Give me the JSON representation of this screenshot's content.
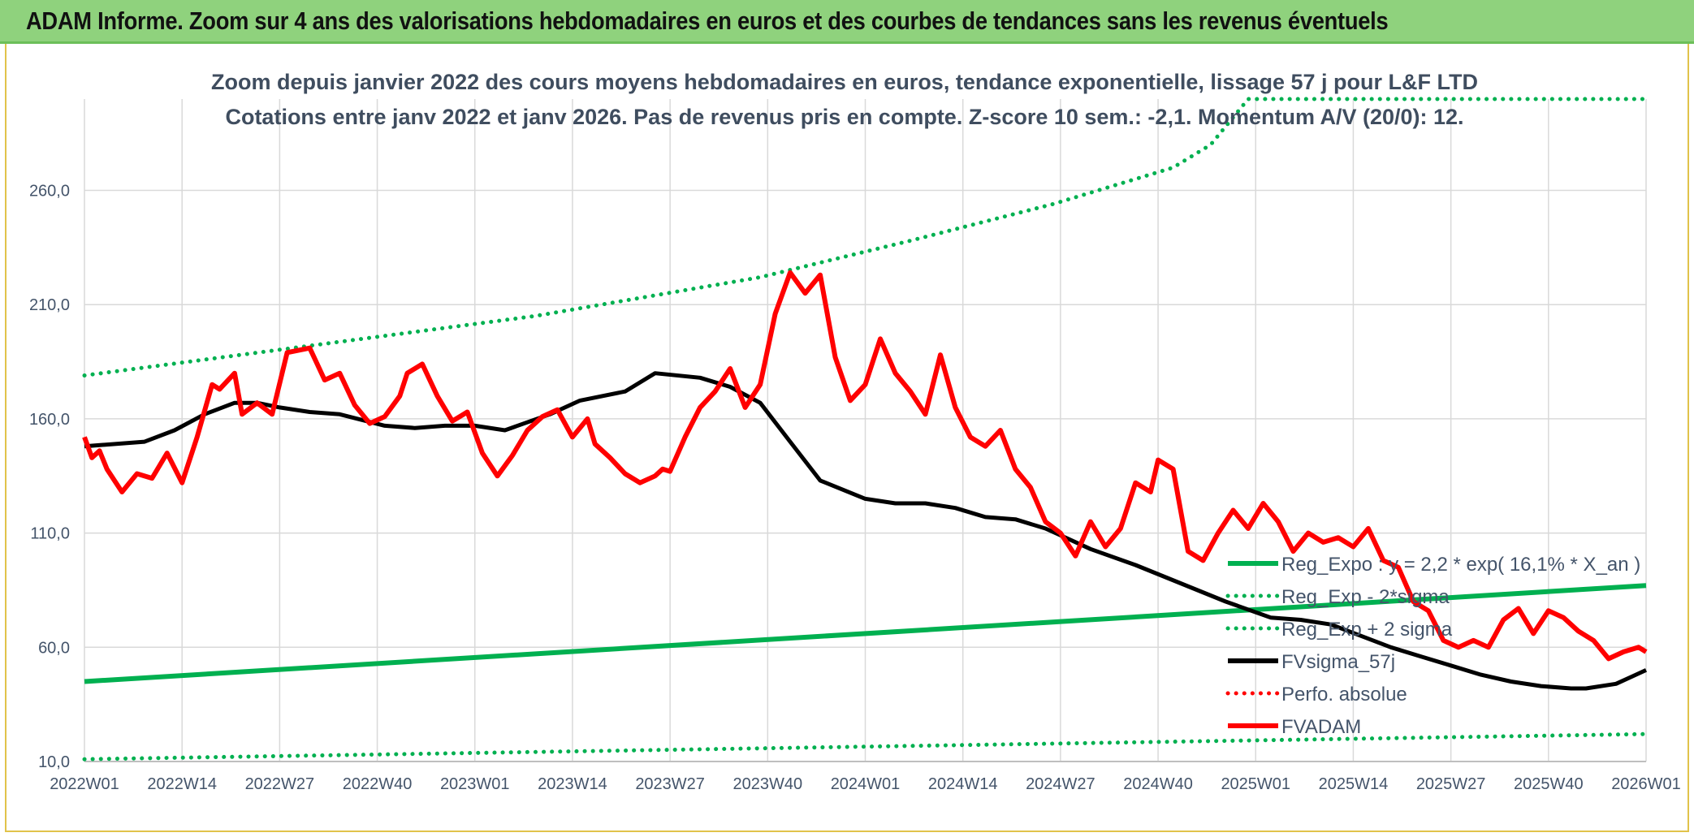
{
  "header": {
    "title": "ADAM Informe. Zoom sur 4 ans des valorisations hebdomadaires en euros et des courbes de tendances sans les revenus éventuels"
  },
  "chart_data": {
    "type": "line",
    "title": "Zoom depuis janvier 2022 des cours moyens hebdomadaires en euros, tendance exponentielle, lissage 57 j pour L&F LTD",
    "subtitle": "Cotations entre janv 2022 et janv 2026. Pas de revenus pris en compte. Z-score 10 sem.: -2,1. Momentum A/V (20/0): 12.",
    "xlabel": "",
    "ylabel": "",
    "x_tick_labels": [
      "2022W01",
      "2022W14",
      "2022W27",
      "2022W40",
      "2023W01",
      "2023W14",
      "2023W27",
      "2023W40",
      "2024W01",
      "2024W14",
      "2024W27",
      "2024W40",
      "2025W01",
      "2025W14",
      "2025W27",
      "2025W40",
      "2026W01"
    ],
    "y_tick_labels": [
      "10,0",
      "60,0",
      "110,0",
      "160,0",
      "210,0",
      "260,0"
    ],
    "y_ticks": [
      10,
      60,
      110,
      160,
      210,
      260
    ],
    "ylim": [
      10,
      300
    ],
    "x_weeks": [
      0,
      208
    ],
    "grid": true,
    "legend_position": "bottom-right",
    "colors": {
      "green": "#00b050",
      "red": "#ff0000",
      "black": "#000000"
    },
    "series": [
      {
        "name": "Reg_Expo : y = 2,2 * exp( 16,1% *  X_an )",
        "style": "solid",
        "color": "#00b050",
        "x": [
          0,
          208
        ],
        "y": [
          45,
          87
        ]
      },
      {
        "name": "Reg_Exp - 2*sigma",
        "style": "dotted",
        "color": "#00b050",
        "x": [
          0,
          208
        ],
        "y": [
          11,
          22
        ]
      },
      {
        "name": "Reg_Exp + 2 sigma",
        "style": "dotted",
        "color": "#00b050",
        "x": [
          0,
          30,
          60,
          90,
          110,
          129,
          145,
          150,
          155,
          208
        ],
        "y": [
          179,
          192,
          205,
          222,
          238,
          254,
          270,
          280,
          300,
          300
        ]
      },
      {
        "name": "FVsigma_57j",
        "style": "solid",
        "color": "#000000",
        "x": [
          0,
          8,
          12,
          16,
          20,
          23,
          26,
          30,
          34,
          40,
          44,
          48,
          52,
          56,
          62,
          66,
          72,
          76,
          82,
          86,
          90,
          94,
          98,
          104,
          108,
          112,
          116,
          120,
          124,
          128,
          130,
          134,
          140,
          146,
          152,
          158,
          162,
          166,
          170,
          174,
          178,
          182,
          186,
          190,
          194,
          198,
          200,
          204,
          206,
          208
        ],
        "y": [
          148,
          150,
          155,
          162,
          167,
          167,
          165,
          163,
          162,
          157,
          156,
          157,
          157,
          155,
          162,
          168,
          172,
          180,
          178,
          174,
          167,
          150,
          133,
          125,
          123,
          123,
          121,
          117,
          116,
          112,
          109,
          103,
          96,
          88,
          80,
          73,
          72,
          70,
          65,
          60,
          56,
          52,
          48,
          45,
          43,
          42,
          42,
          44,
          47,
          50
        ]
      },
      {
        "name": "Perfo. absolue",
        "style": "dotted",
        "color": "#ff0000",
        "x": [],
        "y": []
      },
      {
        "name": "FVADAM",
        "style": "solid-thick",
        "color": "#ff0000",
        "x": [
          0,
          1,
          2,
          3,
          5,
          7,
          9,
          11,
          13,
          15,
          17,
          18,
          20,
          21,
          23,
          25,
          27,
          30,
          32,
          34,
          36,
          38,
          40,
          42,
          43,
          45,
          47,
          49,
          51,
          53,
          55,
          57,
          59,
          61,
          63,
          65,
          67,
          68,
          70,
          72,
          74,
          76,
          77,
          78,
          80,
          82,
          84,
          86,
          88,
          90,
          92,
          94,
          96,
          98,
          100,
          102,
          104,
          106,
          108,
          110,
          112,
          114,
          116,
          118,
          120,
          122,
          124,
          126,
          128,
          130,
          132,
          134,
          136,
          138,
          140,
          142,
          143,
          145,
          147,
          149,
          151,
          153,
          155,
          157,
          159,
          161,
          163,
          165,
          167,
          169,
          171,
          173,
          175,
          177,
          179,
          181,
          183,
          185,
          187,
          189,
          191,
          193,
          195,
          197,
          199,
          201,
          203,
          205,
          207,
          208
        ],
        "y": [
          152,
          143,
          146,
          138,
          128,
          136,
          134,
          145,
          132,
          152,
          175,
          173,
          180,
          162,
          167,
          162,
          189,
          191,
          177,
          180,
          166,
          158,
          161,
          170,
          180,
          184,
          170,
          159,
          163,
          145,
          135,
          144,
          155,
          161,
          164,
          152,
          160,
          149,
          143,
          136,
          132,
          135,
          138,
          137,
          152,
          165,
          172,
          182,
          165,
          175,
          206,
          224,
          215,
          223,
          187,
          168,
          175,
          195,
          180,
          172,
          162,
          188,
          165,
          152,
          148,
          155,
          138,
          130,
          115,
          110,
          100,
          115,
          104,
          112,
          132,
          128,
          142,
          138,
          102,
          98,
          110,
          120,
          112,
          123,
          115,
          102,
          110,
          106,
          108,
          104,
          112,
          98,
          95,
          80,
          76,
          63,
          60,
          63,
          60,
          72,
          77,
          66,
          76,
          73,
          67,
          63,
          55,
          58,
          60,
          58
        ],
        "x_note": ""
      }
    ]
  }
}
